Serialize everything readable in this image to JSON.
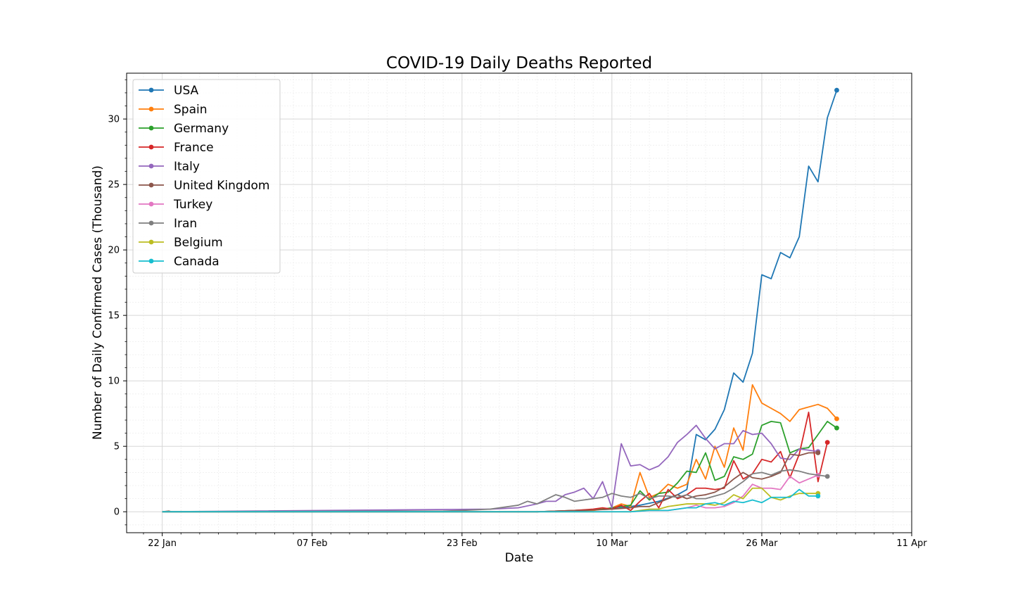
{
  "chart_data": {
    "type": "line",
    "title": "COVID-19 Daily Deaths Reported",
    "xlabel": "Date",
    "ylabel": "Number of Daily Confirmed Cases (Thousand)",
    "x_tick_labels": [
      "22 Jan",
      "07 Feb",
      "23 Feb",
      "10 Mar",
      "26 Mar",
      "11 Apr"
    ],
    "y_tick_labels": [
      "0",
      "5",
      "10",
      "15",
      "20",
      "25",
      "30"
    ],
    "y_ticks": [
      0,
      5,
      10,
      15,
      20,
      25,
      30
    ],
    "x_tick_days": [
      0,
      16,
      32,
      48,
      64,
      80
    ],
    "xlim_days": [
      -3.8,
      80
    ],
    "ylim": [
      -1.6,
      33.5
    ],
    "grid": true,
    "legend_position": "upper-left",
    "series": [
      {
        "name": "USA",
        "color": "#1f77b4",
        "points": [
          [
            0,
            0
          ],
          [
            40,
            0
          ],
          [
            44,
            0.1
          ],
          [
            48,
            0.2
          ],
          [
            51,
            0.5
          ],
          [
            53,
            0.8
          ],
          [
            55,
            1.3
          ],
          [
            56,
            1.7
          ],
          [
            57,
            5.9
          ],
          [
            58,
            5.5
          ],
          [
            59,
            6.3
          ],
          [
            60,
            7.8
          ],
          [
            61,
            10.6
          ],
          [
            62,
            9.9
          ],
          [
            63,
            12.1
          ],
          [
            64,
            18.1
          ],
          [
            65,
            17.8
          ],
          [
            66,
            19.8
          ],
          [
            67,
            19.4
          ],
          [
            68,
            21
          ],
          [
            69,
            26.4
          ],
          [
            70,
            25.2
          ],
          [
            71,
            30.1
          ],
          [
            72,
            32.2
          ]
        ]
      },
      {
        "name": "Spain",
        "color": "#ff7f0e",
        "points": [
          [
            0,
            0
          ],
          [
            40,
            0
          ],
          [
            46,
            0.1
          ],
          [
            48,
            0.3
          ],
          [
            49,
            0.6
          ],
          [
            50,
            0.4
          ],
          [
            51,
            3.0
          ],
          [
            52,
            1.1
          ],
          [
            53,
            1.4
          ],
          [
            54,
            2.1
          ],
          [
            55,
            1.8
          ],
          [
            56,
            2.1
          ],
          [
            57,
            4.0
          ],
          [
            58,
            2.5
          ],
          [
            59,
            5.0
          ],
          [
            60,
            3.4
          ],
          [
            61,
            6.4
          ],
          [
            62,
            4.7
          ],
          [
            63,
            9.7
          ],
          [
            64,
            8.3
          ],
          [
            65,
            7.9
          ],
          [
            66,
            7.5
          ],
          [
            67,
            6.9
          ],
          [
            68,
            7.8
          ],
          [
            69,
            8.0
          ],
          [
            70,
            8.2
          ],
          [
            71,
            7.9
          ],
          [
            72,
            7.1
          ]
        ]
      },
      {
        "name": "Germany",
        "color": "#2ca02c",
        "points": [
          [
            0,
            0
          ],
          [
            40,
            0
          ],
          [
            44,
            0.1
          ],
          [
            47,
            0.2
          ],
          [
            49,
            0.4
          ],
          [
            50,
            0.5
          ],
          [
            51,
            1.6
          ],
          [
            52,
            0.9
          ],
          [
            53,
            1.4
          ],
          [
            54,
            1.5
          ],
          [
            55,
            2.2
          ],
          [
            56,
            3.1
          ],
          [
            57,
            3.0
          ],
          [
            58,
            4.5
          ],
          [
            59,
            2.4
          ],
          [
            60,
            2.7
          ],
          [
            61,
            4.2
          ],
          [
            62,
            4.0
          ],
          [
            63,
            4.4
          ],
          [
            64,
            6.6
          ],
          [
            65,
            6.9
          ],
          [
            66,
            6.8
          ],
          [
            67,
            4.5
          ],
          [
            68,
            4.8
          ],
          [
            69,
            4.9
          ],
          [
            70,
            5.9
          ],
          [
            71,
            6.9
          ],
          [
            72,
            6.4
          ]
        ]
      },
      {
        "name": "France",
        "color": "#d62728",
        "points": [
          [
            0,
            0
          ],
          [
            40,
            0
          ],
          [
            44,
            0.1
          ],
          [
            46,
            0.2
          ],
          [
            47,
            0.3
          ],
          [
            48,
            0.2
          ],
          [
            49,
            0.5
          ],
          [
            50,
            0.1
          ],
          [
            51,
            0.8
          ],
          [
            52,
            1.4
          ],
          [
            53,
            0.3
          ],
          [
            54,
            1.7
          ],
          [
            55,
            1.0
          ],
          [
            56,
            1.3
          ],
          [
            57,
            1.8
          ],
          [
            58,
            1.8
          ],
          [
            59,
            1.7
          ],
          [
            60,
            1.8
          ],
          [
            61,
            3.9
          ],
          [
            62,
            2.5
          ],
          [
            63,
            2.9
          ],
          [
            64,
            4.0
          ],
          [
            65,
            3.8
          ],
          [
            66,
            4.6
          ],
          [
            67,
            2.6
          ],
          [
            68,
            4.4
          ],
          [
            69,
            7.6
          ],
          [
            70,
            2.3
          ],
          [
            71,
            5.3
          ]
        ]
      },
      {
        "name": "Italy",
        "color": "#9467bd",
        "points": [
          [
            0,
            0
          ],
          [
            35,
            0.2
          ],
          [
            38,
            0.3
          ],
          [
            40,
            0.6
          ],
          [
            41,
            0.8
          ],
          [
            42,
            0.8
          ],
          [
            43,
            1.3
          ],
          [
            44,
            1.5
          ],
          [
            45,
            1.8
          ],
          [
            46,
            1.0
          ],
          [
            47,
            2.3
          ],
          [
            48,
            0.3
          ],
          [
            49,
            5.2
          ],
          [
            50,
            3.5
          ],
          [
            51,
            3.6
          ],
          [
            52,
            3.2
          ],
          [
            53,
            3.5
          ],
          [
            54,
            4.2
          ],
          [
            55,
            5.3
          ],
          [
            56,
            5.9
          ],
          [
            57,
            6.6
          ],
          [
            58,
            5.6
          ],
          [
            59,
            4.8
          ],
          [
            60,
            5.2
          ],
          [
            61,
            5.2
          ],
          [
            62,
            6.2
          ],
          [
            63,
            5.9
          ],
          [
            64,
            6.0
          ],
          [
            65,
            5.2
          ],
          [
            66,
            4.1
          ],
          [
            67,
            4.0
          ],
          [
            68,
            4.8
          ],
          [
            69,
            4.7
          ],
          [
            70,
            4.6
          ]
        ]
      },
      {
        "name": "United Kingdom",
        "color": "#8c564b",
        "points": [
          [
            0,
            0
          ],
          [
            0.7,
            0.05
          ],
          [
            1,
            0
          ],
          [
            40,
            0
          ],
          [
            45,
            0.1
          ],
          [
            48,
            0.2
          ],
          [
            50,
            0.3
          ],
          [
            51,
            0.4
          ],
          [
            52,
            0.4
          ],
          [
            53,
            0.7
          ],
          [
            54,
            1.0
          ],
          [
            55,
            1.3
          ],
          [
            56,
            1.0
          ],
          [
            57,
            1.2
          ],
          [
            58,
            1.3
          ],
          [
            59,
            1.5
          ],
          [
            60,
            1.9
          ],
          [
            61,
            2.5
          ],
          [
            62,
            3.0
          ],
          [
            63,
            2.6
          ],
          [
            64,
            2.5
          ],
          [
            65,
            2.7
          ],
          [
            66,
            3.0
          ],
          [
            67,
            4.4
          ],
          [
            68,
            4.3
          ],
          [
            69,
            4.5
          ],
          [
            70,
            4.5
          ]
        ]
      },
      {
        "name": "Turkey",
        "color": "#e377c2",
        "points": [
          [
            0,
            0
          ],
          [
            50,
            0
          ],
          [
            52,
            0.1
          ],
          [
            54,
            0.1
          ],
          [
            56,
            0.3
          ],
          [
            57,
            0.5
          ],
          [
            58,
            0.3
          ],
          [
            59,
            0.3
          ],
          [
            60,
            0.4
          ],
          [
            61,
            0.7
          ],
          [
            62,
            1.2
          ],
          [
            63,
            2.1
          ],
          [
            64,
            1.8
          ],
          [
            65,
            1.8
          ],
          [
            66,
            1.7
          ],
          [
            67,
            2.7
          ],
          [
            68,
            2.2
          ],
          [
            69,
            2.5
          ],
          [
            70,
            2.8
          ]
        ]
      },
      {
        "name": "Iran",
        "color": "#7f7f7f",
        "points": [
          [
            0,
            0
          ],
          [
            30,
            0.05
          ],
          [
            32,
            0.1
          ],
          [
            35,
            0.2
          ],
          [
            38,
            0.5
          ],
          [
            39,
            0.8
          ],
          [
            40,
            0.6
          ],
          [
            42,
            1.3
          ],
          [
            43,
            1.1
          ],
          [
            44,
            0.8
          ],
          [
            45,
            0.9
          ],
          [
            46,
            1.0
          ],
          [
            47,
            1.1
          ],
          [
            48,
            1.4
          ],
          [
            49,
            1.2
          ],
          [
            50,
            1.1
          ],
          [
            51,
            1.4
          ],
          [
            52,
            1.0
          ],
          [
            53,
            1.2
          ],
          [
            54,
            1.2
          ],
          [
            55,
            1.1
          ],
          [
            56,
            1.3
          ],
          [
            57,
            1.0
          ],
          [
            58,
            1.0
          ],
          [
            59,
            1.2
          ],
          [
            60,
            1.4
          ],
          [
            61,
            1.8
          ],
          [
            62,
            2.3
          ],
          [
            63,
            2.9
          ],
          [
            64,
            3.0
          ],
          [
            65,
            2.8
          ],
          [
            66,
            3.1
          ],
          [
            67,
            3.2
          ],
          [
            68,
            3.1
          ],
          [
            69,
            2.9
          ],
          [
            70,
            2.8
          ],
          [
            71,
            2.7
          ]
        ]
      },
      {
        "name": "Belgium",
        "color": "#bcbd22",
        "points": [
          [
            0,
            0
          ],
          [
            50,
            0
          ],
          [
            52,
            0.2
          ],
          [
            53,
            0.2
          ],
          [
            54,
            0.4
          ],
          [
            55,
            0.5
          ],
          [
            56,
            0.6
          ],
          [
            57,
            0.6
          ],
          [
            58,
            0.6
          ],
          [
            59,
            0.5
          ],
          [
            60,
            0.7
          ],
          [
            61,
            1.3
          ],
          [
            62,
            1.0
          ],
          [
            63,
            1.8
          ],
          [
            64,
            1.8
          ],
          [
            65,
            1.1
          ],
          [
            66,
            0.9
          ],
          [
            67,
            1.2
          ],
          [
            68,
            1.4
          ],
          [
            69,
            1.4
          ],
          [
            70,
            1.4
          ]
        ]
      },
      {
        "name": "Canada",
        "color": "#17becf",
        "points": [
          [
            0,
            0
          ],
          [
            50,
            0
          ],
          [
            52,
            0.1
          ],
          [
            54,
            0.1
          ],
          [
            55,
            0.2
          ],
          [
            56,
            0.3
          ],
          [
            57,
            0.3
          ],
          [
            58,
            0.6
          ],
          [
            59,
            0.7
          ],
          [
            60,
            0.5
          ],
          [
            61,
            0.8
          ],
          [
            62,
            0.7
          ],
          [
            63,
            0.9
          ],
          [
            64,
            0.7
          ],
          [
            65,
            1.1
          ],
          [
            66,
            1.1
          ],
          [
            67,
            1.1
          ],
          [
            68,
            1.7
          ],
          [
            69,
            1.2
          ],
          [
            70,
            1.2
          ]
        ]
      }
    ]
  }
}
